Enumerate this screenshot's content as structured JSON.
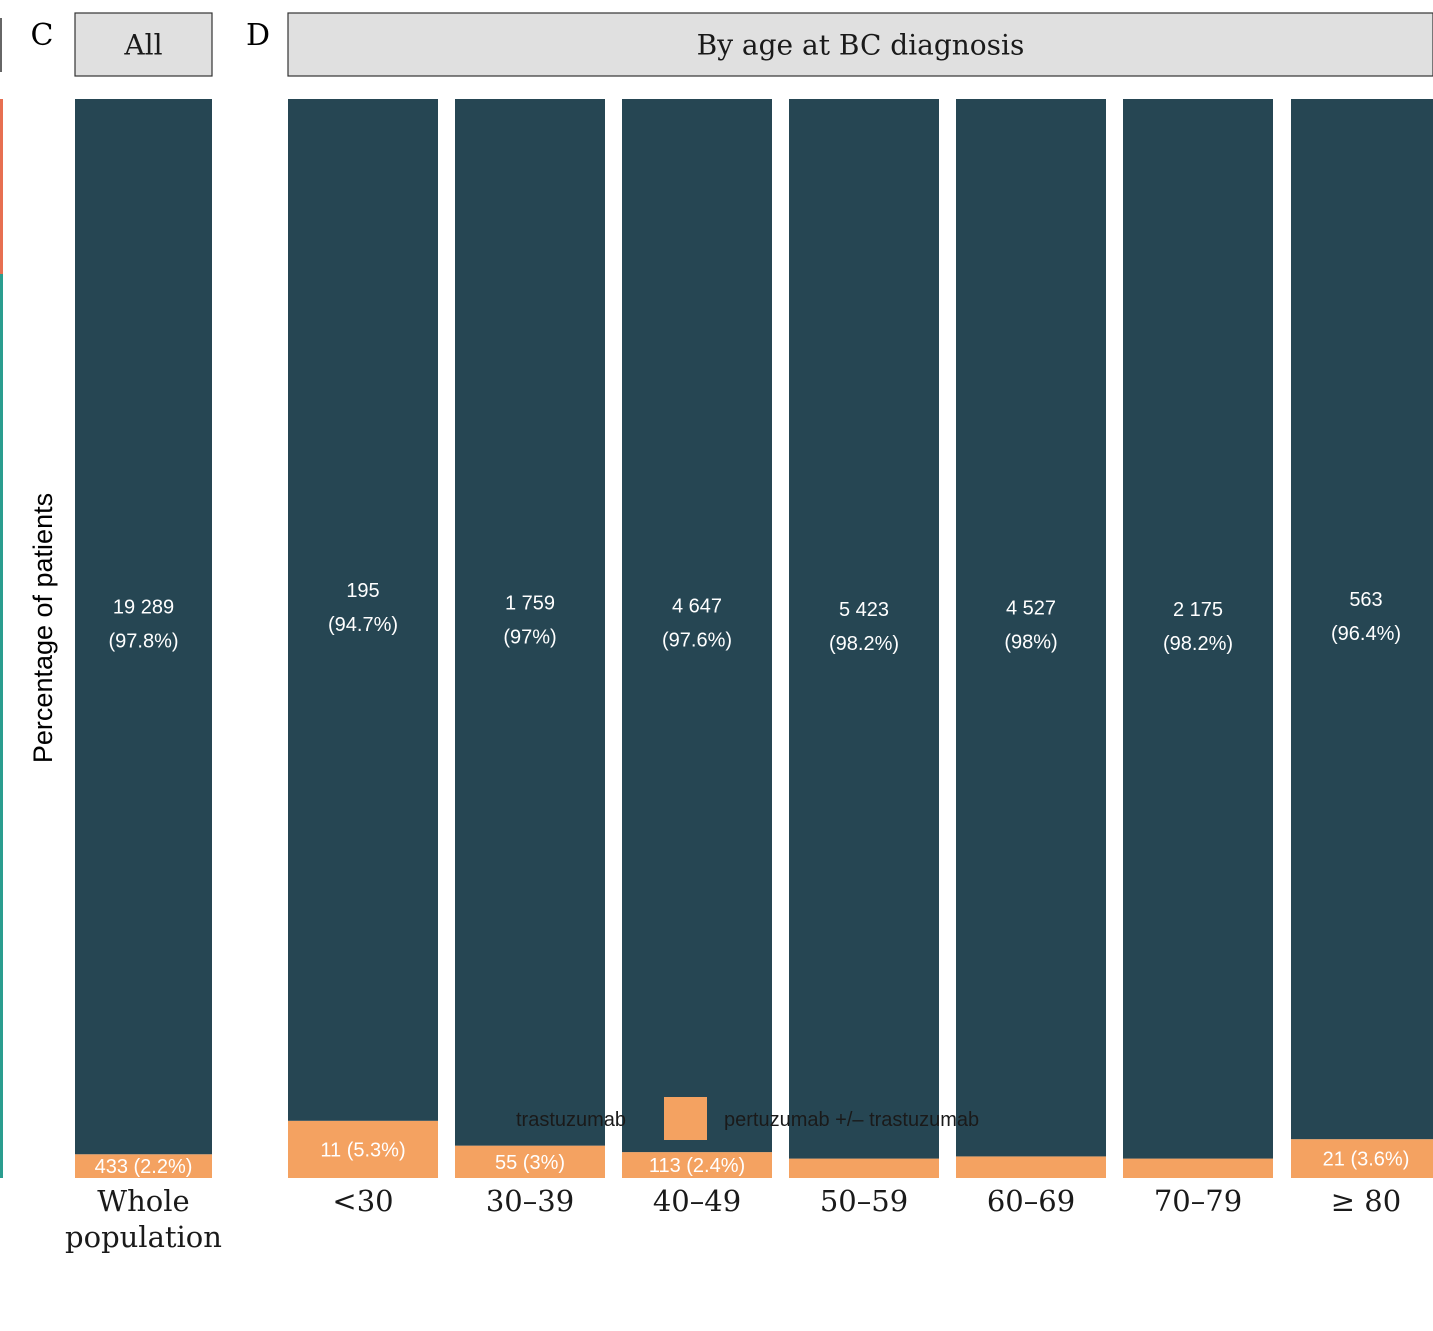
{
  "chart_data": {
    "type": "bar",
    "stacked": true,
    "normalized": true,
    "ylabel": "Percentage of patients",
    "ylim": [
      0,
      1
    ],
    "grid": false,
    "legend_position": "bottom",
    "panels": [
      {
        "letter": "C",
        "strip": "All",
        "categories": [
          "Whole population"
        ],
        "category_lines": [
          [
            "Whole",
            "population"
          ]
        ],
        "series": [
          {
            "name": "trastuzumab",
            "color": "#264653",
            "counts": [
              19289
            ],
            "shares": [
              0.978
            ],
            "labels": [
              "19 289",
              "(97.8%)"
            ]
          },
          {
            "name": "pertuzumab +/– trastuzumab",
            "color": "#f4a261",
            "counts": [
              433
            ],
            "shares": [
              0.022
            ],
            "labels": [
              "433 (2.2%)"
            ]
          }
        ]
      },
      {
        "letter": "D",
        "strip": "By age at BC diagnosis",
        "categories": [
          "<30",
          "30–39",
          "40–49",
          "50–59",
          "60–69",
          "70–79",
          "≥ 80"
        ],
        "series": [
          {
            "name": "trastuzumab",
            "color": "#264653",
            "counts": [
              195,
              1759,
              4647,
              5423,
              4527,
              2175,
              563
            ],
            "shares": [
              0.947,
              0.97,
              0.976,
              0.982,
              0.98,
              0.982,
              0.964
            ],
            "label_lines": [
              [
                "195",
                "(94.7%)"
              ],
              [
                "1 759",
                "(97%)"
              ],
              [
                "4 647",
                "(97.6%)"
              ],
              [
                "5 423",
                "(98.2%)"
              ],
              [
                "4 527",
                "(98%)"
              ],
              [
                "2 175",
                "(98.2%)"
              ],
              [
                "563",
                "(96.4%)"
              ]
            ]
          },
          {
            "name": "pertuzumab +/– trastuzumab",
            "color": "#f4a261",
            "counts": [
              11,
              55,
              113,
              null,
              null,
              null,
              21
            ],
            "shares": [
              0.053,
              0.03,
              0.024,
              0.018,
              0.02,
              0.018,
              0.036
            ],
            "labels": [
              "11 (5.3%)",
              "55 (3%)",
              "113 (2.4%)",
              "",
              "",
              "",
              "21 (3.6%)"
            ]
          }
        ]
      }
    ],
    "legend": [
      {
        "label": "trastuzumab",
        "color": "#264653"
      },
      {
        "label": "pertuzumab +/– trastuzumab",
        "color": "#f4a261"
      }
    ],
    "left_edge_colors": [
      "#e76f51",
      "#2a9d8f"
    ]
  }
}
